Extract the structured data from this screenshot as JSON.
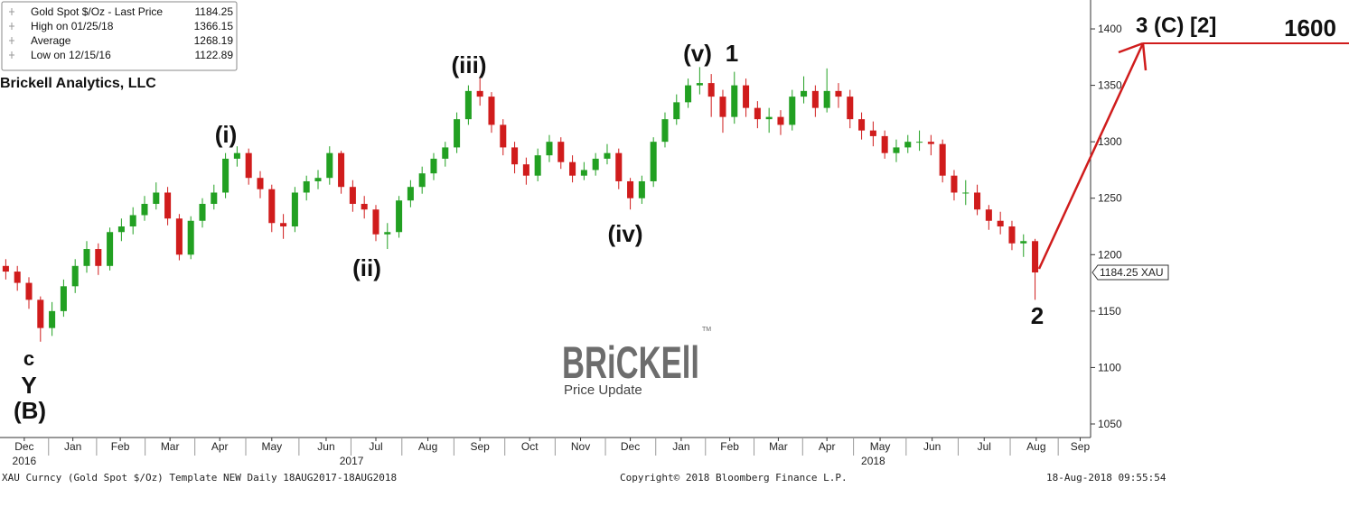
{
  "chart_data": {
    "type": "candlestick",
    "brand": "Brickell Analytics, LLC",
    "legend": [
      {
        "label": "Gold Spot $/Oz - Last Price",
        "value": 1184.25
      },
      {
        "label": "High on 01/25/18",
        "value": 1366.15
      },
      {
        "label": "Average",
        "value": 1268.19
      },
      {
        "label": "Low on 12/15/16",
        "value": 1122.89
      }
    ],
    "last_price": 1184.25,
    "last_price_label": "1184.25 XAU",
    "up_color": "#22a022",
    "down_color": "#d01c1c",
    "open": [
      1190,
      1185,
      1175,
      1160,
      1135,
      1150,
      1172,
      1190,
      1205,
      1190,
      1220,
      1225,
      1235,
      1245,
      1255,
      1232,
      1200,
      1230,
      1245,
      1255,
      1285,
      1290,
      1268,
      1258,
      1228,
      1225,
      1255,
      1265,
      1268,
      1290,
      1260,
      1245,
      1240,
      1218,
      1220,
      1248,
      1260,
      1272,
      1285,
      1295,
      1320,
      1345,
      1340,
      1315,
      1295,
      1280,
      1270,
      1288,
      1300,
      1282,
      1270,
      1275,
      1285,
      1290,
      1265,
      1250,
      1265,
      1300,
      1320,
      1335,
      1350,
      1352,
      1340,
      1322,
      1350,
      1330,
      1320,
      1322,
      1315,
      1340,
      1345,
      1330,
      1345,
      1340,
      1320,
      1310,
      1305,
      1290,
      1295,
      1300,
      1300,
      1298,
      1270,
      1255,
      1255,
      1240,
      1230,
      1225,
      1210,
      1212
    ],
    "high": [
      1196,
      1190,
      1180,
      1163,
      1158,
      1178,
      1196,
      1212,
      1210,
      1224,
      1232,
      1242,
      1252,
      1264,
      1260,
      1236,
      1234,
      1250,
      1262,
      1290,
      1296,
      1294,
      1274,
      1262,
      1236,
      1260,
      1270,
      1275,
      1296,
      1292,
      1266,
      1252,
      1244,
      1228,
      1252,
      1266,
      1278,
      1290,
      1300,
      1326,
      1350,
      1357,
      1344,
      1320,
      1300,
      1286,
      1294,
      1306,
      1304,
      1288,
      1282,
      1290,
      1298,
      1294,
      1268,
      1270,
      1304,
      1326,
      1342,
      1356,
      1366.15,
      1360,
      1346,
      1362,
      1356,
      1336,
      1330,
      1328,
      1346,
      1358,
      1350,
      1365,
      1352,
      1346,
      1326,
      1318,
      1310,
      1302,
      1306,
      1310,
      1306,
      1302,
      1275,
      1266,
      1262,
      1244,
      1238,
      1230,
      1218,
      1214
    ],
    "low": [
      1178,
      1168,
      1152,
      1122.89,
      1128,
      1145,
      1166,
      1184,
      1182,
      1186,
      1212,
      1218,
      1230,
      1240,
      1226,
      1195,
      1196,
      1224,
      1240,
      1250,
      1278,
      1262,
      1250,
      1220,
      1214,
      1220,
      1248,
      1258,
      1262,
      1254,
      1238,
      1232,
      1212,
      1205,
      1215,
      1242,
      1254,
      1266,
      1278,
      1290,
      1315,
      1332,
      1308,
      1288,
      1272,
      1262,
      1265,
      1282,
      1276,
      1264,
      1266,
      1270,
      1280,
      1258,
      1240,
      1245,
      1260,
      1295,
      1315,
      1330,
      1342,
      1322,
      1308,
      1316,
      1322,
      1312,
      1308,
      1306,
      1310,
      1334,
      1322,
      1326,
      1330,
      1312,
      1302,
      1296,
      1285,
      1282,
      1290,
      1292,
      1288,
      1264,
      1248,
      1244,
      1235,
      1222,
      1218,
      1204,
      1198,
      1160
    ],
    "close": [
      1185,
      1175,
      1160,
      1135,
      1150,
      1172,
      1190,
      1205,
      1190,
      1220,
      1225,
      1235,
      1245,
      1255,
      1232,
      1200,
      1230,
      1245,
      1255,
      1285,
      1290,
      1268,
      1258,
      1228,
      1225,
      1255,
      1265,
      1268,
      1290,
      1260,
      1245,
      1240,
      1218,
      1220,
      1248,
      1260,
      1272,
      1285,
      1295,
      1320,
      1345,
      1340,
      1315,
      1295,
      1280,
      1270,
      1288,
      1300,
      1282,
      1270,
      1275,
      1285,
      1290,
      1265,
      1250,
      1265,
      1300,
      1320,
      1335,
      1350,
      1352,
      1340,
      1322,
      1350,
      1330,
      1320,
      1322,
      1315,
      1340,
      1345,
      1330,
      1345,
      1340,
      1320,
      1310,
      1305,
      1290,
      1295,
      1300,
      1300,
      1298,
      1270,
      1255,
      1255,
      1240,
      1230,
      1225,
      1210,
      1212,
      1184.25
    ],
    "xlim": [
      -0.5,
      93.8
    ],
    "xticks": [
      {
        "value": 1.6,
        "label": "Dec"
      },
      {
        "value": 5.8,
        "label": "Jan"
      },
      {
        "value": 9.9,
        "label": "Feb"
      },
      {
        "value": 14.2,
        "label": "Mar"
      },
      {
        "value": 18.5,
        "label": "Apr"
      },
      {
        "value": 23.0,
        "label": "May"
      },
      {
        "value": 27.7,
        "label": "Jun"
      },
      {
        "value": 32.0,
        "label": "Jul"
      },
      {
        "value": 36.5,
        "label": "Aug"
      },
      {
        "value": 41.0,
        "label": "Sep"
      },
      {
        "value": 45.3,
        "label": "Oct"
      },
      {
        "value": 49.7,
        "label": "Nov"
      },
      {
        "value": 54.0,
        "label": "Dec"
      },
      {
        "value": 58.4,
        "label": "Jan"
      },
      {
        "value": 62.6,
        "label": "Feb"
      },
      {
        "value": 66.8,
        "label": "Mar"
      },
      {
        "value": 71.0,
        "label": "Apr"
      },
      {
        "value": 75.6,
        "label": "May"
      },
      {
        "value": 80.1,
        "label": "Jun"
      },
      {
        "value": 84.6,
        "label": "Jul"
      },
      {
        "value": 89.1,
        "label": "Aug"
      },
      {
        "value": 92.9,
        "label": "Sep"
      }
    ],
    "year_ticks": [
      {
        "value": 1.6,
        "label": "2016"
      },
      {
        "value": 29.9,
        "label": "2017"
      },
      {
        "value": 75.0,
        "label": "2018"
      }
    ],
    "ylim": [
      1038,
      1425.6
    ],
    "yticks": [
      1050,
      1100,
      1150,
      1200,
      1250,
      1300,
      1350,
      1400
    ],
    "annotations": [
      "c",
      "Y",
      "(B)",
      "(i)",
      "(ii)",
      "(iii)",
      "(iv)",
      "(v)",
      "1",
      "2",
      "3 (C) [2]",
      "1600"
    ],
    "logo": {
      "word": "BRiCKEll",
      "tm": "TM",
      "caption": "Price Update"
    },
    "footer": {
      "left": "XAU Curncy (Gold Spot  $/Oz) Template NEW  Daily 18AUG2017-18AUG2018",
      "center": "Copyright© 2018 Bloomberg Finance L.P.",
      "right": "18-Aug-2018 09:55:54"
    }
  }
}
